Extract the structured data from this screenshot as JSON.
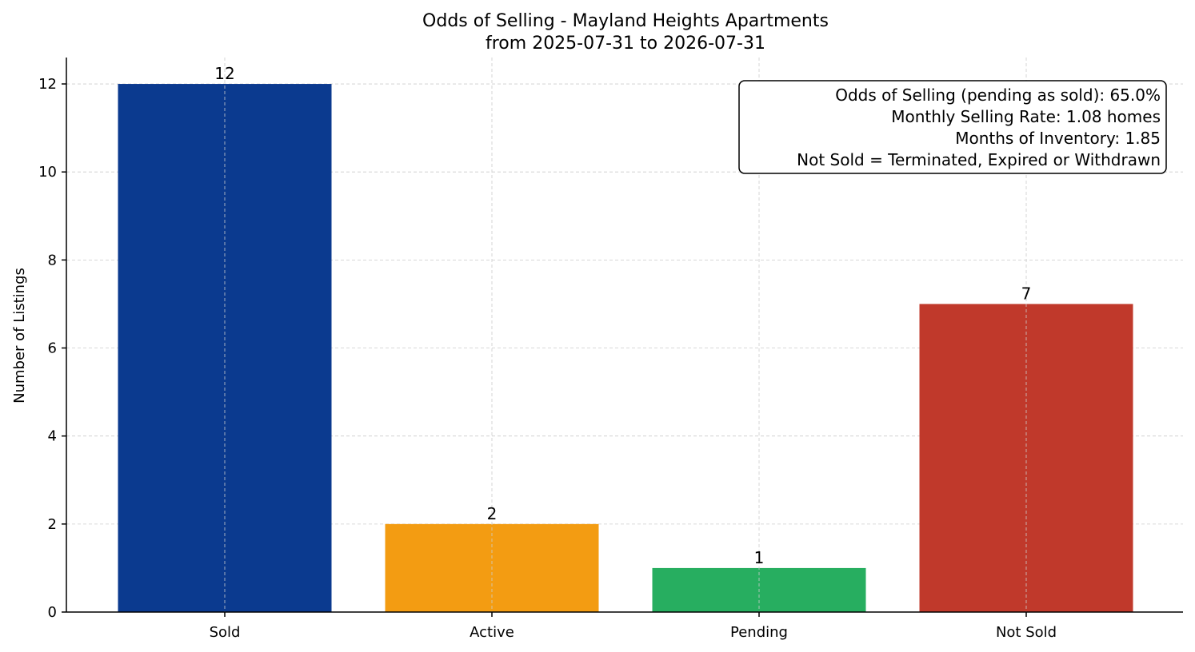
{
  "chart_data": {
    "type": "bar",
    "title": "Odds of Selling - Mayland Heights Apartments",
    "subtitle": "from 2025-07-31 to 2026-07-31",
    "xlabel": "",
    "ylabel": "Number of Listings",
    "categories": [
      "Sold",
      "Active",
      "Pending",
      "Not Sold"
    ],
    "values": [
      12,
      2,
      1,
      7
    ],
    "value_labels": [
      "12",
      "2",
      "1",
      "7"
    ],
    "colors": [
      "#0b3a8f",
      "#f39c12",
      "#27ae60",
      "#c0392b"
    ],
    "ylim": [
      0,
      12.6
    ],
    "yticks": [
      0,
      2,
      4,
      6,
      8,
      10,
      12
    ],
    "ytick_labels": [
      "0",
      "2",
      "4",
      "6",
      "8",
      "10",
      "12"
    ],
    "grid": true,
    "annotation_position": "top-right",
    "annotation": [
      "Odds of Selling (pending as sold): 65.0%",
      "Monthly Selling Rate: 1.08 homes",
      "Months of Inventory: 1.85",
      "Not Sold = Terminated, Expired or Withdrawn"
    ]
  }
}
